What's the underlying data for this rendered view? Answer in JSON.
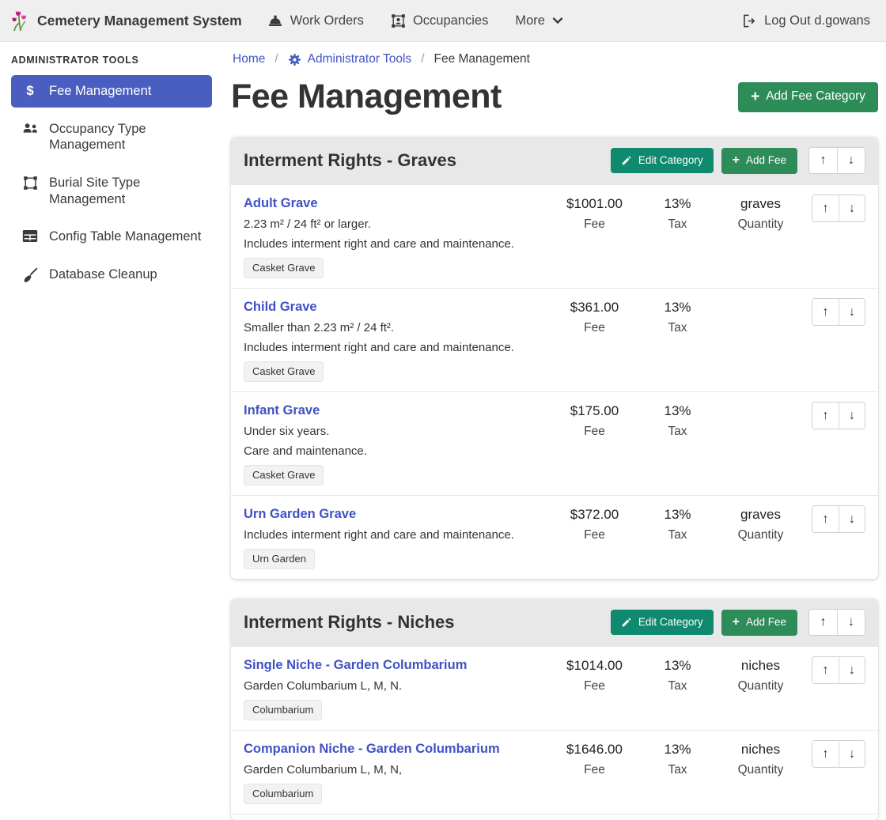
{
  "navbar": {
    "brand": "Cemetery Management System",
    "items": [
      {
        "label": "Work Orders",
        "icon": "hard-hat-icon"
      },
      {
        "label": "Occupancies",
        "icon": "occupancy-frame-icon"
      },
      {
        "label": "More",
        "icon": "chevron-down-icon"
      }
    ],
    "logout_label": "Log Out d.gowans"
  },
  "sidebar": {
    "heading": "ADMINISTRATOR TOOLS",
    "items": [
      {
        "label": "Fee Management",
        "icon": "dollar-icon",
        "active": true
      },
      {
        "label": "Occupancy Type Management",
        "icon": "people-icon",
        "active": false
      },
      {
        "label": "Burial Site Type Management",
        "icon": "plot-frame-icon",
        "active": false
      },
      {
        "label": "Config Table Management",
        "icon": "table-icon",
        "active": false
      },
      {
        "label": "Database Cleanup",
        "icon": "broom-icon",
        "active": false
      }
    ]
  },
  "breadcrumb": {
    "home": "Home",
    "admin_tools": "Administrator Tools",
    "current": "Fee Management",
    "separator": "/"
  },
  "page": {
    "title": "Fee Management",
    "add_category_label": "Add Fee Category"
  },
  "category_buttons": {
    "edit": "Edit Category",
    "add": "Add Fee"
  },
  "labels": {
    "fee": "Fee",
    "tax": "Tax",
    "quantity": "Quantity"
  },
  "icons": {
    "up_arrow": "↑",
    "down_arrow": "↓",
    "plus": "+"
  },
  "colors": {
    "accent_blue": "#4a5ec1",
    "link_blue": "#3f51c5",
    "green": "#2e8c58",
    "teal": "#0f8a6e",
    "header_gray": "#e8e8e8",
    "navbar_gray": "#efefef"
  },
  "categories": [
    {
      "title": "Interment Rights - Graves",
      "fees": [
        {
          "name": "Adult Grave",
          "descriptions": [
            "2.23 m² / 24 ft² or larger.",
            "Includes interment right and care and maintenance."
          ],
          "tag": "Casket Grave",
          "fee": "$1001.00",
          "tax": "13%",
          "quantity": "graves"
        },
        {
          "name": "Child Grave",
          "descriptions": [
            "Smaller than 2.23 m² / 24 ft².",
            "Includes interment right and care and maintenance."
          ],
          "tag": "Casket Grave",
          "fee": "$361.00",
          "tax": "13%",
          "quantity": ""
        },
        {
          "name": "Infant Grave",
          "descriptions": [
            "Under six years.",
            "Care and maintenance."
          ],
          "tag": "Casket Grave",
          "fee": "$175.00",
          "tax": "13%",
          "quantity": ""
        },
        {
          "name": "Urn Garden Grave",
          "descriptions": [
            "Includes interment right and care and maintenance."
          ],
          "tag": "Urn Garden",
          "fee": "$372.00",
          "tax": "13%",
          "quantity": "graves"
        }
      ]
    },
    {
      "title": "Interment Rights - Niches",
      "fees": [
        {
          "name": "Single Niche - Garden Columbarium",
          "descriptions": [
            "Garden Columbarium L, M, N."
          ],
          "tag": "Columbarium",
          "fee": "$1014.00",
          "tax": "13%",
          "quantity": "niches"
        },
        {
          "name": "Companion Niche - Garden Columbarium",
          "descriptions": [
            "Garden Columbarium L, M, N,"
          ],
          "tag": "Columbarium",
          "fee": "$1646.00",
          "tax": "13%",
          "quantity": "niches"
        }
      ]
    }
  ]
}
